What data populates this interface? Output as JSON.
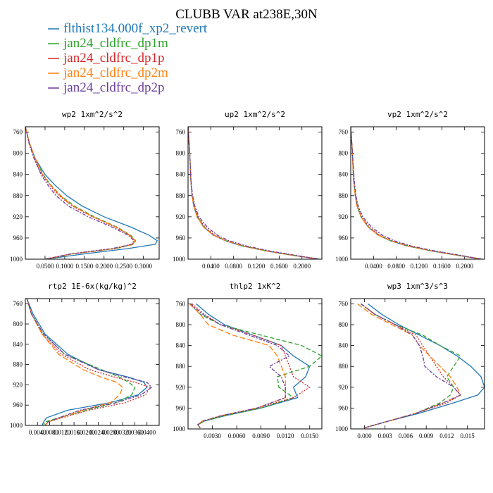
{
  "figure": {
    "title": "CLUBB VAR at238E,30N",
    "legend": [
      {
        "label": "flthist134.000f_xp2_revert",
        "color": "#1f77b4",
        "dash": "solid"
      },
      {
        "label": "jan24_cldfrc_dp1m",
        "color": "#2ca02c",
        "dash": "6,3"
      },
      {
        "label": "jan24_cldfrc_dp1p",
        "color": "#d62728",
        "dash": "2,2"
      },
      {
        "label": "jan24_cldfrc_dp2m",
        "color": "#ff7f0e",
        "dash": "8,3"
      },
      {
        "label": "jan24_cldfrc_dp2p",
        "color": "#6a3d9a",
        "dash": "5,2,2,2"
      }
    ]
  },
  "chart_data": [
    {
      "type": "line",
      "title": "wp2  1xm^2/s^2",
      "xlim": [
        0,
        0.34
      ],
      "ylim": [
        750,
        1000
      ],
      "xticks": [
        0.05,
        0.1,
        0.15,
        0.2,
        0.25,
        0.3
      ],
      "xticklabels": [
        "0.0500",
        "0.1000",
        "0.1500",
        "0.2000",
        "0.2500",
        "0.3000"
      ],
      "yticks": [
        760,
        800,
        840,
        880,
        920,
        960,
        1000
      ],
      "y": [
        750,
        780,
        810,
        840,
        860,
        880,
        900,
        920,
        940,
        955,
        965,
        972,
        980,
        990,
        1000
      ],
      "series": [
        {
          "x": [
            0.0,
            0.01,
            0.025,
            0.05,
            0.075,
            0.105,
            0.145,
            0.2,
            0.27,
            0.315,
            0.335,
            0.33,
            0.26,
            0.15,
            0.05
          ]
        },
        {
          "x": [
            0.0,
            0.01,
            0.025,
            0.045,
            0.065,
            0.09,
            0.125,
            0.175,
            0.235,
            0.268,
            0.28,
            0.275,
            0.23,
            0.12,
            0.05
          ]
        },
        {
          "x": [
            0.0,
            0.01,
            0.023,
            0.042,
            0.062,
            0.085,
            0.12,
            0.17,
            0.23,
            0.265,
            0.278,
            0.272,
            0.225,
            0.118,
            0.05
          ]
        },
        {
          "x": [
            0.0,
            0.01,
            0.025,
            0.044,
            0.064,
            0.088,
            0.122,
            0.172,
            0.233,
            0.266,
            0.279,
            0.274,
            0.228,
            0.119,
            0.05
          ]
        },
        {
          "x": [
            0.0,
            0.009,
            0.022,
            0.04,
            0.057,
            0.078,
            0.11,
            0.16,
            0.222,
            0.262,
            0.276,
            0.27,
            0.22,
            0.115,
            0.05
          ]
        }
      ]
    },
    {
      "type": "line",
      "title": "up2  1xm^2/s^2",
      "xlim": [
        0.0,
        0.235
      ],
      "ylim": [
        750,
        1000
      ],
      "xticks": [
        0.04,
        0.08,
        0.12,
        0.16,
        0.2
      ],
      "xticklabels": [
        "0.0400",
        "0.0800",
        "0.1200",
        "0.1600",
        "0.2000"
      ],
      "yticks": [
        760,
        800,
        840,
        880,
        920,
        960,
        1000
      ],
      "y": [
        750,
        800,
        850,
        880,
        900,
        920,
        940,
        955,
        965,
        975,
        985,
        993,
        1000
      ],
      "series": [
        {
          "x": [
            0.0,
            0.003,
            0.005,
            0.007,
            0.01,
            0.016,
            0.028,
            0.045,
            0.065,
            0.095,
            0.14,
            0.185,
            0.23
          ]
        },
        {
          "x": [
            0.0,
            0.003,
            0.005,
            0.007,
            0.01,
            0.017,
            0.029,
            0.046,
            0.066,
            0.096,
            0.141,
            0.186,
            0.23
          ]
        },
        {
          "x": [
            0.0,
            0.003,
            0.005,
            0.007,
            0.011,
            0.017,
            0.03,
            0.047,
            0.067,
            0.097,
            0.142,
            0.187,
            0.23
          ]
        },
        {
          "x": [
            0.0,
            0.003,
            0.005,
            0.007,
            0.01,
            0.016,
            0.028,
            0.045,
            0.066,
            0.096,
            0.141,
            0.186,
            0.23
          ]
        },
        {
          "x": [
            0.0,
            0.003,
            0.005,
            0.008,
            0.012,
            0.019,
            0.034,
            0.052,
            0.072,
            0.102,
            0.146,
            0.19,
            0.23
          ]
        }
      ]
    },
    {
      "type": "line",
      "title": "vp2  1xm^2/s^2",
      "xlim": [
        0.0,
        0.235
      ],
      "ylim": [
        750,
        1000
      ],
      "xticks": [
        0.04,
        0.08,
        0.12,
        0.16,
        0.2
      ],
      "xticklabels": [
        "0.0400",
        "0.0800",
        "0.1200",
        "0.1600",
        "0.2000"
      ],
      "yticks": [
        760,
        800,
        840,
        880,
        920,
        960,
        1000
      ],
      "y": [
        750,
        800,
        850,
        880,
        900,
        920,
        940,
        955,
        965,
        975,
        985,
        993,
        1000
      ],
      "series": [
        {
          "x": [
            0.0,
            0.003,
            0.005,
            0.008,
            0.011,
            0.018,
            0.031,
            0.049,
            0.069,
            0.099,
            0.144,
            0.189,
            0.23
          ]
        },
        {
          "x": [
            0.0,
            0.003,
            0.005,
            0.008,
            0.011,
            0.018,
            0.032,
            0.05,
            0.07,
            0.1,
            0.145,
            0.19,
            0.23
          ]
        },
        {
          "x": [
            0.0,
            0.003,
            0.005,
            0.008,
            0.012,
            0.019,
            0.033,
            0.051,
            0.071,
            0.101,
            0.146,
            0.191,
            0.23
          ]
        },
        {
          "x": [
            0.0,
            0.003,
            0.005,
            0.008,
            0.011,
            0.018,
            0.031,
            0.049,
            0.07,
            0.1,
            0.145,
            0.19,
            0.23
          ]
        },
        {
          "x": [
            0.0,
            0.003,
            0.006,
            0.009,
            0.013,
            0.021,
            0.037,
            0.056,
            0.076,
            0.106,
            0.15,
            0.194,
            0.23
          ]
        }
      ]
    },
    {
      "type": "line",
      "title": "rtp2  1E-6x(kg/kg)^2",
      "xlim": [
        0.0,
        0.0044
      ],
      "ylim": [
        750,
        1000
      ],
      "xticks": [
        0.0004,
        0.0008,
        0.0012,
        0.0016,
        0.002,
        0.0024,
        0.0028,
        0.0032,
        0.0036,
        0.004
      ],
      "xticklabels": [
        "0.0040",
        "0.0080",
        "0.0120",
        "0.0160",
        "0.0200",
        "0.0240",
        "0.0280",
        "0.0320",
        "0.0360",
        "0.0400"
      ],
      "yticks": [
        760,
        800,
        840,
        880,
        920,
        960,
        1000
      ],
      "y": [
        750,
        780,
        820,
        860,
        890,
        905,
        915,
        925,
        940,
        955,
        970,
        985,
        993,
        1000
      ],
      "series": [
        {
          "x": [
            5e-05,
            0.00025,
            0.00065,
            0.0014,
            0.0024,
            0.0034,
            0.0039,
            0.004,
            0.0037,
            0.0028,
            0.0014,
            0.0007,
            0.0006,
            0.00055
          ]
        },
        {
          "x": [
            5e-05,
            0.0002,
            0.0006,
            0.0013,
            0.0025,
            0.0031,
            0.0034,
            0.0036,
            0.0035,
            0.003,
            0.002,
            0.0011,
            0.00065,
            0.0006
          ]
        },
        {
          "x": [
            5e-05,
            0.0002,
            0.00055,
            0.0012,
            0.0021,
            0.00295,
            0.0036,
            0.0041,
            0.00395,
            0.0033,
            0.0021,
            0.0012,
            0.00075,
            0.00065
          ]
        },
        {
          "x": [
            5e-05,
            0.0002,
            0.00055,
            0.0011,
            0.0019,
            0.0025,
            0.003,
            0.0032,
            0.0031,
            0.0028,
            0.0019,
            0.00115,
            0.00075,
            0.00065
          ]
        },
        {
          "x": [
            5e-05,
            0.0002,
            0.0006,
            0.0013,
            0.0024,
            0.0033,
            0.004,
            0.00415,
            0.0038,
            0.003,
            0.0018,
            0.0011,
            0.00075,
            0.00065
          ]
        }
      ]
    },
    {
      "type": "line",
      "title": "thlp2  1xK^2",
      "xlim": [
        0.0,
        0.0165
      ],
      "ylim": [
        750,
        1000
      ],
      "xticks": [
        0.003,
        0.006,
        0.009,
        0.012,
        0.015
      ],
      "xticklabels": [
        "0.0030",
        "0.0060",
        "0.0090",
        "0.0120",
        "0.0150"
      ],
      "yticks": [
        760,
        800,
        840,
        880,
        920,
        960,
        1000
      ],
      "y": [
        760,
        780,
        800,
        820,
        840,
        860,
        880,
        900,
        920,
        940,
        960,
        975,
        985,
        992,
        998
      ],
      "series": [
        {
          "x": [
            0.001,
            0.0025,
            0.0045,
            0.008,
            0.0115,
            0.013,
            0.015,
            0.0145,
            0.013,
            0.0135,
            0.009,
            0.0045,
            0.002,
            0.0012,
            0.0015
          ]
        },
        {
          "x": [
            0.0002,
            0.0015,
            0.004,
            0.009,
            0.014,
            0.0165,
            0.015,
            0.011,
            0.0112,
            0.013,
            0.009,
            0.0045,
            0.002,
            0.0012,
            0.0015
          ]
        },
        {
          "x": [
            0.0005,
            0.002,
            0.004,
            0.008,
            0.0115,
            0.012,
            0.0125,
            0.013,
            0.015,
            0.013,
            0.0085,
            0.004,
            0.0018,
            0.0012,
            0.0015
          ]
        },
        {
          "x": [
            0.0002,
            0.0015,
            0.0025,
            0.0055,
            0.01,
            0.011,
            0.0115,
            0.012,
            0.012,
            0.012,
            0.0085,
            0.004,
            0.0018,
            0.0012,
            0.0015
          ]
        },
        {
          "x": [
            0.0003,
            0.0018,
            0.004,
            0.0075,
            0.011,
            0.0125,
            0.01,
            0.0115,
            0.012,
            0.012,
            0.0085,
            0.004,
            0.0018,
            0.0012,
            0.0015
          ]
        }
      ]
    },
    {
      "type": "line",
      "title": "wp3  1xm^3/s^3",
      "xlim": [
        -0.002,
        0.0175
      ],
      "ylim": [
        750,
        1000
      ],
      "xticks": [
        0.0,
        0.003,
        0.006,
        0.009,
        0.012,
        0.015
      ],
      "xticklabels": [
        "0.000",
        "0.003",
        "0.006",
        "0.009",
        "0.012",
        "0.015"
      ],
      "yticks": [
        760,
        800,
        840,
        880,
        920,
        960,
        1000
      ],
      "y": [
        760,
        780,
        800,
        820,
        840,
        860,
        880,
        900,
        920,
        935,
        950,
        970,
        985,
        998
      ],
      "series": [
        {
          "x": [
            0.0005,
            0.0025,
            0.005,
            0.008,
            0.011,
            0.0135,
            0.0155,
            0.017,
            0.0175,
            0.0165,
            0.013,
            0.008,
            0.0035,
            0.0
          ]
        },
        {
          "x": [
            -0.0005,
            0.0015,
            0.0045,
            0.0085,
            0.011,
            0.014,
            0.013,
            0.012,
            0.013,
            0.0125,
            0.011,
            0.0075,
            0.0035,
            0.0
          ]
        },
        {
          "x": [
            -0.0005,
            0.0015,
            0.0045,
            0.0075,
            0.0085,
            0.0095,
            0.0105,
            0.0115,
            0.013,
            0.014,
            0.012,
            0.0075,
            0.0035,
            0.0
          ]
        },
        {
          "x": [
            -0.001,
            0.001,
            0.004,
            0.007,
            0.008,
            0.0095,
            0.011,
            0.0125,
            0.0135,
            0.014,
            0.0115,
            0.0075,
            0.0035,
            0.0
          ]
        },
        {
          "x": [
            -0.0005,
            0.0015,
            0.0045,
            0.007,
            0.008,
            0.0085,
            0.0088,
            0.0105,
            0.013,
            0.014,
            0.0115,
            0.0075,
            0.0035,
            0.0
          ]
        }
      ]
    }
  ]
}
